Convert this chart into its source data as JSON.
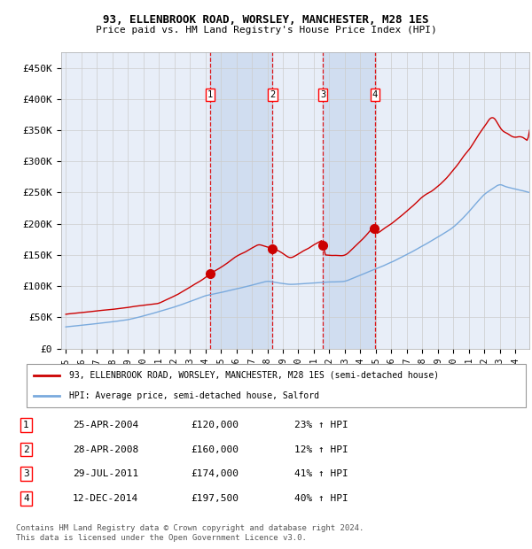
{
  "title1": "93, ELLENBROOK ROAD, WORSLEY, MANCHESTER, M28 1ES",
  "title2": "Price paid vs. HM Land Registry's House Price Index (HPI)",
  "legend_red": "93, ELLENBROOK ROAD, WORSLEY, MANCHESTER, M28 1ES (semi-detached house)",
  "legend_blue": "HPI: Average price, semi-detached house, Salford",
  "footer": "Contains HM Land Registry data © Crown copyright and database right 2024.\nThis data is licensed under the Open Government Licence v3.0.",
  "sale_years": [
    2004.32,
    2008.33,
    2011.58,
    2014.95
  ],
  "sale_prices": [
    120000,
    160000,
    174000,
    197500
  ],
  "table_rows": [
    [
      "1",
      "25-APR-2004",
      "£120,000",
      "23% ↑ HPI"
    ],
    [
      "2",
      "28-APR-2008",
      "£160,000",
      "12% ↑ HPI"
    ],
    [
      "3",
      "29-JUL-2011",
      "£174,000",
      "41% ↑ HPI"
    ],
    [
      "4",
      "12-DEC-2014",
      "£197,500",
      "40% ↑ HPI"
    ]
  ],
  "ylim": [
    0,
    475000
  ],
  "ytick_vals": [
    0,
    50000,
    100000,
    150000,
    200000,
    250000,
    300000,
    350000,
    400000,
    450000
  ],
  "ytick_labels": [
    "£0",
    "£50K",
    "£100K",
    "£150K",
    "£200K",
    "£250K",
    "£300K",
    "£350K",
    "£400K",
    "£450K"
  ],
  "xlim_start": 1994.7,
  "xlim_end": 2024.9,
  "xtick_years": [
    1995,
    1996,
    1997,
    1998,
    1999,
    2000,
    2001,
    2002,
    2003,
    2004,
    2005,
    2006,
    2007,
    2008,
    2009,
    2010,
    2011,
    2012,
    2013,
    2014,
    2015,
    2016,
    2017,
    2018,
    2019,
    2020,
    2021,
    2022,
    2023,
    2024
  ],
  "background_color": "#ffffff",
  "chart_bg": "#e8eef8",
  "grid_color": "#cccccc",
  "red_color": "#cc0000",
  "blue_color": "#7aaadd",
  "highlight_bg": "#d0ddf0"
}
